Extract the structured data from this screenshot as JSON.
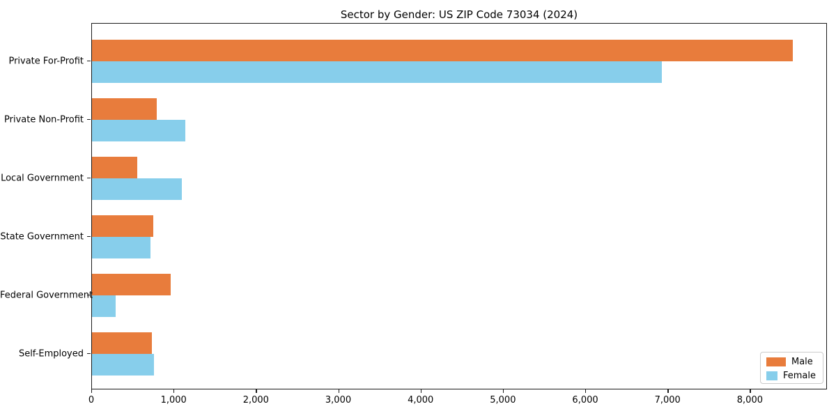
{
  "title": "Sector by Gender: US ZIP Code 73034 (2024)",
  "chart_data": {
    "type": "bar",
    "orientation": "horizontal",
    "title": "Sector by Gender: US ZIP Code 73034 (2024)",
    "xlabel": "",
    "ylabel": "",
    "categories": [
      "Private For-Profit",
      "Private Non-Profit",
      "Local Government",
      "State Government",
      "Federal Government",
      "Self-Employed"
    ],
    "series": [
      {
        "name": "Male",
        "color": "#e87c3c",
        "values": [
          8510,
          790,
          550,
          745,
          960,
          725
        ]
      },
      {
        "name": "Female",
        "color": "#87ceeb",
        "values": [
          6920,
          1130,
          1090,
          715,
          290,
          750
        ]
      }
    ],
    "xlim": [
      0,
      8936
    ],
    "xticks": [
      0,
      1000,
      2000,
      3000,
      4000,
      5000,
      6000,
      7000,
      8000
    ],
    "xtick_labels": [
      "0",
      "1,000",
      "2,000",
      "3,000",
      "4,000",
      "5,000",
      "6,000",
      "7,000",
      "8,000"
    ],
    "legend_position": "lower right",
    "grid": false,
    "axis_color": "#1a1a1a"
  },
  "legend": {
    "items": [
      {
        "label": "Male",
        "color": "#e87c3c"
      },
      {
        "label": "Female",
        "color": "#87ceeb"
      }
    ]
  }
}
